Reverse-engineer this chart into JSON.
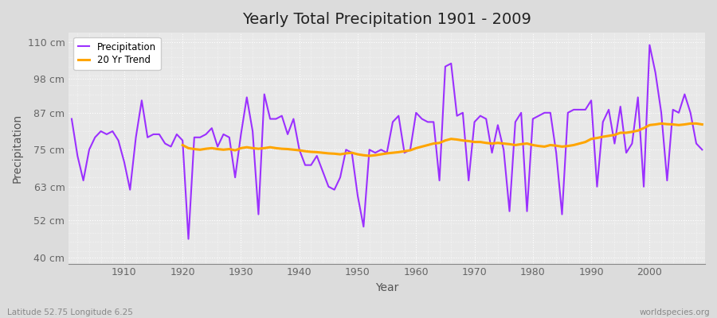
{
  "title": "Yearly Total Precipitation 1901 - 2009",
  "xlabel": "Year",
  "ylabel": "Precipitation",
  "lat_lon_label": "Latitude 52.75 Longitude 6.25",
  "source_label": "worldspecies.org",
  "yticks": [
    40,
    52,
    63,
    75,
    87,
    98,
    110
  ],
  "ytick_labels": [
    "40 cm",
    "52 cm",
    "63 cm",
    "75 cm",
    "87 cm",
    "98 cm",
    "110 cm"
  ],
  "ylim": [
    38,
    113
  ],
  "xlim": [
    1900.5,
    2009.5
  ],
  "xticks": [
    1910,
    1920,
    1930,
    1940,
    1950,
    1960,
    1970,
    1980,
    1990,
    2000
  ],
  "precip_color": "#9B30FF",
  "trend_color": "#FFA500",
  "bg_color": "#DCDCDC",
  "plot_bg_color": "#E8E8E8",
  "grid_color": "#FFFFFF",
  "years": [
    1901,
    1902,
    1903,
    1904,
    1905,
    1906,
    1907,
    1908,
    1909,
    1910,
    1911,
    1912,
    1913,
    1914,
    1915,
    1916,
    1917,
    1918,
    1919,
    1920,
    1921,
    1922,
    1923,
    1924,
    1925,
    1926,
    1927,
    1928,
    1929,
    1930,
    1931,
    1932,
    1933,
    1934,
    1935,
    1936,
    1937,
    1938,
    1939,
    1940,
    1941,
    1942,
    1943,
    1944,
    1945,
    1946,
    1947,
    1948,
    1949,
    1950,
    1951,
    1952,
    1953,
    1954,
    1955,
    1956,
    1957,
    1958,
    1959,
    1960,
    1961,
    1962,
    1963,
    1964,
    1965,
    1966,
    1967,
    1968,
    1969,
    1970,
    1971,
    1972,
    1973,
    1974,
    1975,
    1976,
    1977,
    1978,
    1979,
    1980,
    1981,
    1982,
    1983,
    1984,
    1985,
    1986,
    1987,
    1988,
    1989,
    1990,
    1991,
    1992,
    1993,
    1994,
    1995,
    1996,
    1997,
    1998,
    1999,
    2000,
    2001,
    2002,
    2003,
    2004,
    2005,
    2006,
    2007,
    2008,
    2009
  ],
  "precipitation": [
    85,
    73,
    65,
    75,
    79,
    81,
    80,
    81,
    78,
    71,
    62,
    79,
    91,
    79,
    80,
    80,
    77,
    76,
    80,
    78,
    46,
    79,
    79,
    80,
    82,
    76,
    80,
    79,
    66,
    80,
    92,
    81,
    54,
    93,
    85,
    85,
    86,
    80,
    85,
    75,
    70,
    70,
    73,
    68,
    63,
    62,
    66,
    75,
    74,
    60,
    50,
    75,
    74,
    75,
    74,
    84,
    86,
    74,
    75,
    87,
    85,
    84,
    84,
    65,
    102,
    103,
    86,
    87,
    65,
    84,
    86,
    85,
    74,
    83,
    75,
    55,
    84,
    87,
    55,
    85,
    86,
    87,
    87,
    74,
    54,
    87,
    88,
    88,
    88,
    91,
    63,
    84,
    88,
    77,
    89,
    74,
    77,
    92,
    63,
    109,
    100,
    87,
    65,
    88,
    87,
    93,
    87,
    77,
    75
  ],
  "trend": [
    null,
    null,
    null,
    null,
    null,
    null,
    null,
    null,
    null,
    null,
    null,
    null,
    null,
    null,
    null,
    null,
    null,
    null,
    null,
    76.5,
    75.5,
    75.2,
    75.0,
    75.3,
    75.5,
    75.2,
    75.0,
    75.2,
    74.8,
    75.5,
    75.8,
    75.5,
    75.3,
    75.5,
    75.8,
    75.5,
    75.3,
    75.2,
    75.0,
    74.8,
    74.5,
    74.3,
    74.2,
    74.0,
    73.8,
    73.7,
    73.5,
    73.8,
    74.0,
    73.5,
    73.2,
    73.0,
    73.2,
    73.5,
    73.8,
    74.0,
    74.2,
    74.5,
    74.8,
    75.5,
    76.0,
    76.5,
    77.0,
    77.2,
    78.0,
    78.5,
    78.3,
    78.0,
    77.8,
    77.5,
    77.5,
    77.2,
    77.0,
    77.2,
    77.0,
    76.8,
    76.5,
    76.8,
    77.0,
    76.5,
    76.2,
    76.0,
    76.5,
    76.3,
    76.0,
    76.2,
    76.5,
    77.0,
    77.5,
    78.5,
    78.8,
    79.2,
    79.5,
    79.8,
    80.5,
    80.5,
    80.8,
    81.2,
    82.0,
    83.0,
    83.2,
    83.5,
    83.3,
    83.2,
    83.0,
    83.2,
    83.5,
    83.5,
    83.2
  ]
}
